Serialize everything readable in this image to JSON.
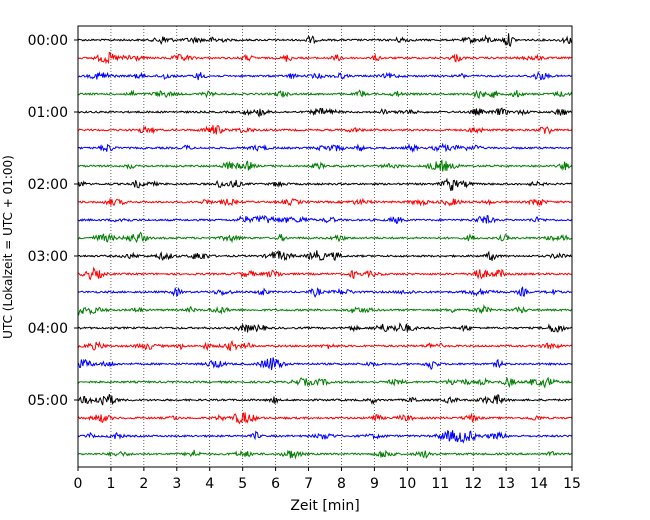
{
  "chart_data": {
    "type": "line",
    "title": "",
    "xlabel": "Zeit  [min]",
    "ylabel": "UTC (Lokalzeit = UTC + 01:00)",
    "xlim": [
      0,
      15
    ],
    "x_ticks": [
      "0",
      "1",
      "2",
      "3",
      "4",
      "5",
      "6",
      "7",
      "8",
      "9",
      "10",
      "11",
      "12",
      "13",
      "14",
      "15"
    ],
    "y_tick_labels": [
      "00:00",
      "01:00",
      "02:00",
      "03:00",
      "04:00",
      "05:00"
    ],
    "grid": "vertical dotted at each minute",
    "trace_interval_minutes": 15,
    "trace_start_times": [
      "00:00",
      "00:15",
      "00:30",
      "00:45",
      "01:00",
      "01:15",
      "01:30",
      "01:45",
      "02:00",
      "02:15",
      "02:30",
      "02:45",
      "03:00",
      "03:15",
      "03:30",
      "03:45",
      "04:00",
      "04:15",
      "04:30",
      "04:45",
      "05:00",
      "05:15",
      "05:30",
      "05:45"
    ],
    "color_cycle": [
      "#000000",
      "#ff0000",
      "#0000ff",
      "#008000"
    ],
    "series_description": "24 helicorder seismogram traces, noise-level amplitude"
  }
}
